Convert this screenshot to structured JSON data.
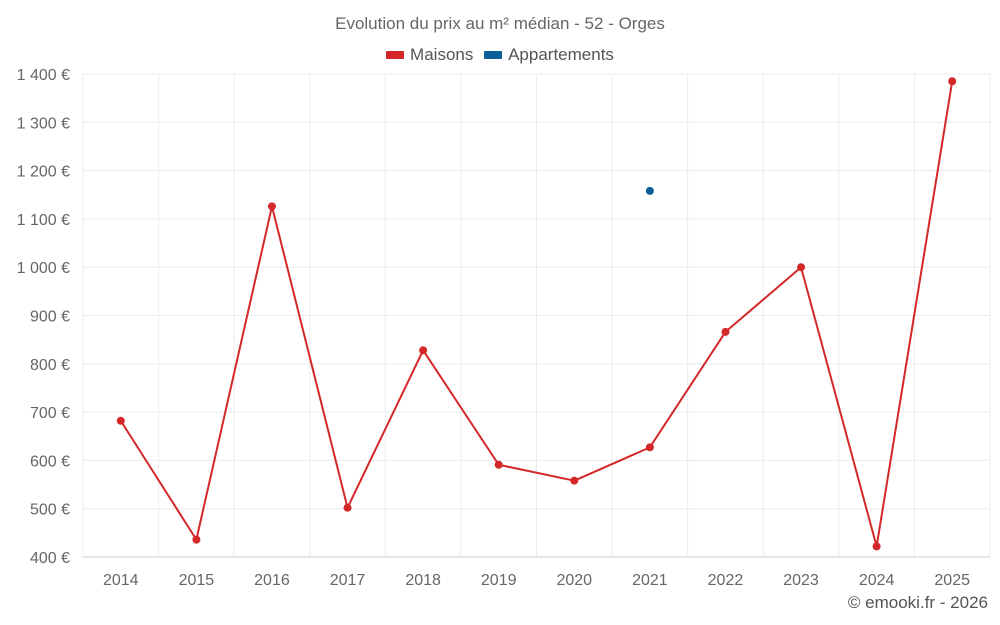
{
  "chart_data": {
    "type": "line",
    "title": "Evolution du prix au m² médian - 52 - Orges",
    "categories": [
      "2014",
      "2015",
      "2016",
      "2017",
      "2018",
      "2019",
      "2020",
      "2021",
      "2022",
      "2023",
      "2024",
      "2025"
    ],
    "series": [
      {
        "name": "Maisons",
        "color": "#d42828",
        "values": [
          682,
          436,
          1126,
          502,
          828,
          591,
          558,
          627,
          866,
          1000,
          422,
          1385
        ]
      },
      {
        "name": "Appartements",
        "color": "#0a5f96",
        "values": [
          null,
          null,
          null,
          null,
          null,
          null,
          null,
          1158,
          null,
          null,
          null,
          null
        ]
      }
    ],
    "ylim": [
      400,
      1400
    ],
    "yticks": [
      400,
      500,
      600,
      700,
      800,
      900,
      1000,
      1100,
      1200,
      1300,
      1400
    ],
    "ytick_labels": [
      "400 €",
      "500 €",
      "600 €",
      "700 €",
      "800 €",
      "900 €",
      "1 000 €",
      "1 100 €",
      "1 200 €",
      "1 300 €",
      "1 400 €"
    ],
    "grid": true,
    "legend_position": "top-center"
  },
  "footer": {
    "copyright": "© emooki.fr - 2026"
  }
}
